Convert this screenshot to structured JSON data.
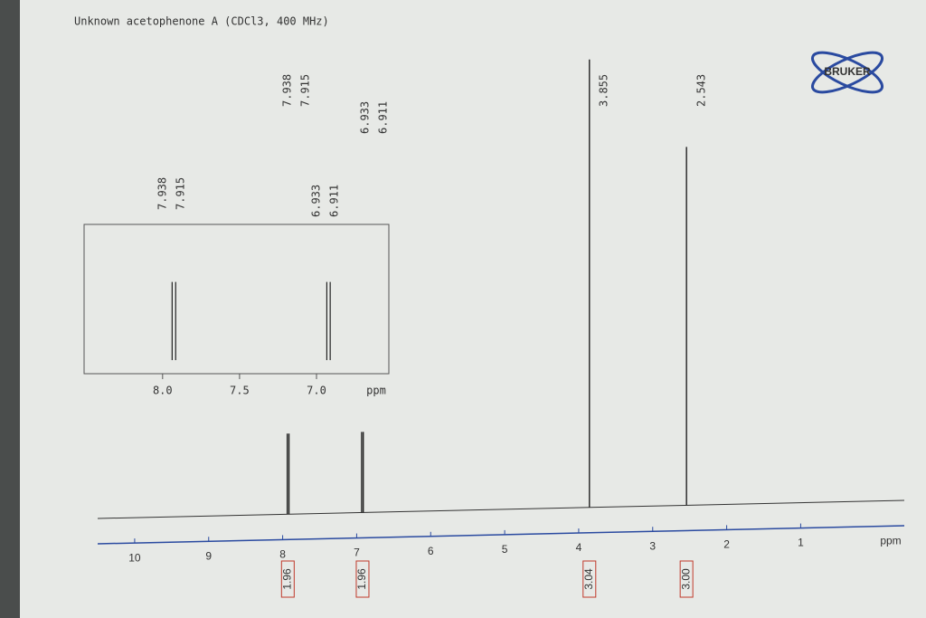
{
  "chart_data": {
    "type": "nmr",
    "title": "Unknown acetophenone A (CDCl3, 400 MHz)",
    "brand": "BRUKER",
    "x_label": "ppm",
    "xlim": [
      10.5,
      -0.4
    ],
    "xticks": [
      10,
      9,
      8,
      7,
      6,
      5,
      4,
      3,
      2,
      1
    ],
    "peaks": {
      "x": [
        7.938,
        7.915,
        6.933,
        6.911,
        3.855,
        2.543
      ],
      "values": [
        18,
        18,
        18,
        18,
        100,
        80
      ],
      "color": "#222222"
    },
    "integrals": {
      "x": [
        7.93,
        6.92,
        3.855,
        2.543
      ],
      "values": [
        1.96,
        1.96,
        3.04,
        3.0
      ],
      "value_labels": [
        "1.96",
        "1.96",
        "3.04",
        "3.00"
      ],
      "color": "#c0392b"
    },
    "inset": {
      "xlim": [
        8.51,
        6.53
      ],
      "xticks": [
        {
          "value": 8,
          "label": "8.0"
        },
        {
          "value": 7.5,
          "label": "7.5"
        },
        {
          "value": 7,
          "label": "7.0"
        }
      ],
      "x_label": "ppm"
    }
  }
}
